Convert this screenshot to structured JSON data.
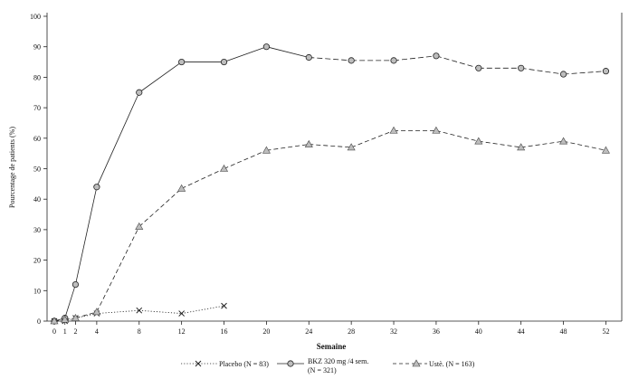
{
  "chart_data": {
    "type": "line",
    "xlabel": "Semaine",
    "ylabel": "Pourcentage de patients (%)",
    "xlim": [
      0,
      54
    ],
    "ylim": [
      0,
      100
    ],
    "x_ticks": [
      0,
      1,
      2,
      4,
      8,
      12,
      16,
      20,
      24,
      28,
      32,
      36,
      40,
      44,
      48,
      52
    ],
    "y_ticks": [
      0,
      10,
      20,
      30,
      40,
      50,
      60,
      70,
      80,
      90,
      100
    ],
    "grid": false,
    "legend_position": "bottom",
    "series": [
      {
        "name": "Placebo (N = 83)",
        "marker": "x",
        "dash": "dotted",
        "color": "#222222",
        "x": [
          0,
          1,
          2,
          4,
          8,
          12,
          16
        ],
        "y": [
          0,
          0,
          1,
          2.5,
          3.5,
          2.5,
          5
        ]
      },
      {
        "name": "BKZ 320 mg /4 sem.",
        "name_line2": "(N = 321)",
        "marker": "circle",
        "dash": "solid-then-dashed",
        "color": "#222222",
        "x": [
          0,
          1,
          2,
          4,
          8,
          12,
          16,
          20,
          24,
          28,
          32,
          36,
          40,
          44,
          48,
          52
        ],
        "y": [
          0,
          1,
          12,
          44,
          75,
          85,
          85,
          90,
          86.5,
          85.5,
          85.5,
          87,
          83,
          83,
          81,
          82
        ]
      },
      {
        "name": "Ustè. (N = 163)",
        "marker": "triangle",
        "dash": "dashed",
        "color": "#222222",
        "x": [
          0,
          1,
          2,
          4,
          8,
          12,
          16,
          20,
          24,
          28,
          32,
          36,
          40,
          44,
          48,
          52
        ],
        "y": [
          0,
          0.5,
          1,
          3,
          31,
          43.5,
          50,
          56,
          58,
          57,
          62.5,
          62.5,
          59,
          57,
          59,
          56
        ]
      }
    ]
  }
}
